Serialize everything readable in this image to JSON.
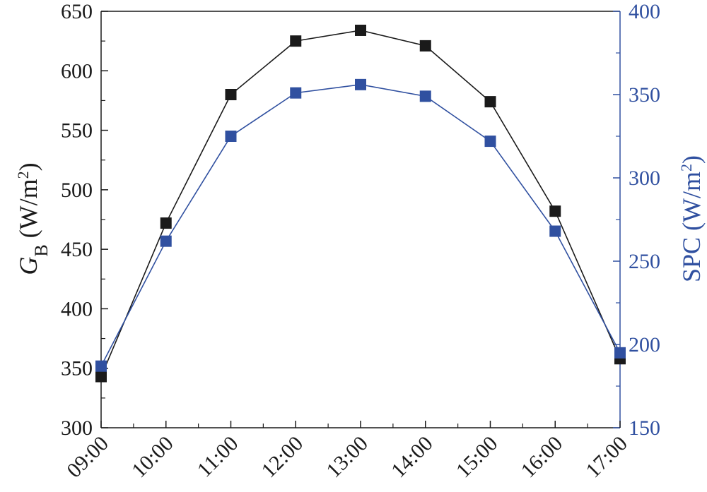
{
  "chart_data": {
    "type": "line",
    "categories": [
      "09:00",
      "10:00",
      "11:00",
      "12:00",
      "13:00",
      "14:00",
      "15:00",
      "16:00",
      "17:00"
    ],
    "series": [
      {
        "axis": "left",
        "color": "#1a1a1a",
        "marker": "square",
        "values": [
          343,
          472,
          580,
          625,
          634,
          621,
          574,
          482,
          358
        ]
      },
      {
        "axis": "right",
        "color": "#3050a0",
        "marker": "square",
        "values": [
          187,
          262,
          325,
          351,
          356,
          349,
          322,
          268,
          195
        ]
      }
    ],
    "y_left": {
      "label_main": "G",
      "label_sub": "B",
      "label_unit": " (W/m",
      "label_sup": "2",
      "label_close": ")",
      "ylim": [
        300,
        650
      ],
      "ticks": [
        300,
        350,
        400,
        450,
        500,
        550,
        600,
        650
      ],
      "color": "#1a1a1a"
    },
    "y_right": {
      "label_main": "SPC",
      "label_unit": " (W/m",
      "label_sup": "2",
      "label_close": ")",
      "ylim": [
        150,
        400
      ],
      "ticks": [
        150,
        200,
        250,
        300,
        350,
        400
      ],
      "color": "#3050a0"
    },
    "grid": false,
    "legend": "none"
  }
}
